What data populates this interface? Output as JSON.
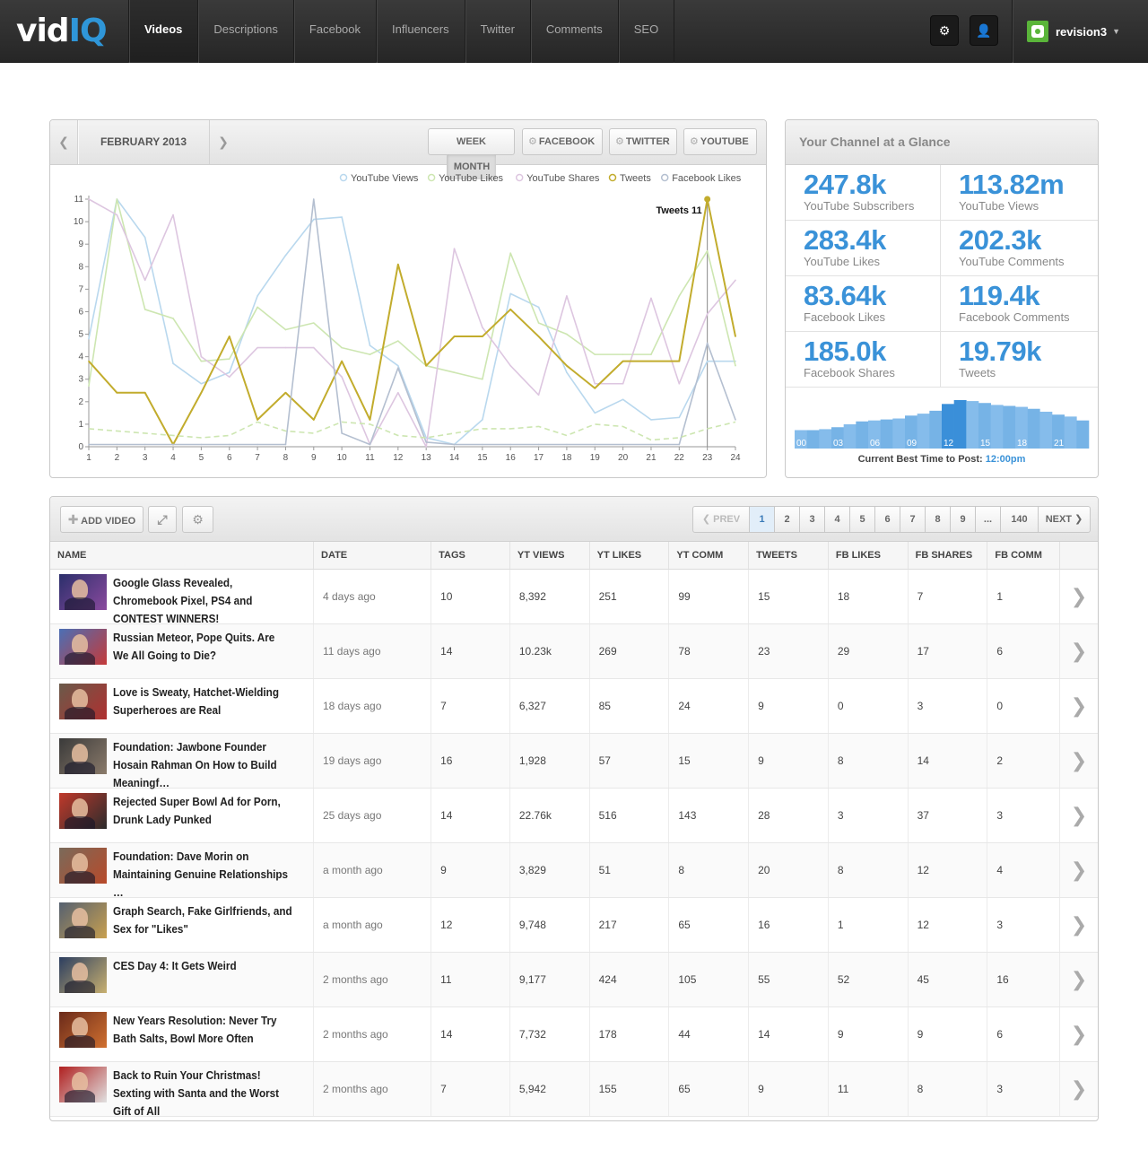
{
  "nav": {
    "logo_left": "vid",
    "logo_right": "IQ",
    "tabs": [
      {
        "label": "Videos",
        "active": true
      },
      {
        "label": "Descriptions",
        "active": false
      },
      {
        "label": "Facebook",
        "active": false
      },
      {
        "label": "Influencers",
        "active": false
      },
      {
        "label": "Twitter",
        "active": false
      },
      {
        "label": "Comments",
        "active": false
      },
      {
        "label": "SEO",
        "active": false
      }
    ],
    "settings_icon": "gear-icon",
    "user_icon": "user-icon",
    "username": "revision3"
  },
  "chart_panel": {
    "prev_icon": "chevron-left-icon",
    "next_icon": "chevron-right-icon",
    "month": "FEBRUARY 2013",
    "week_label": "WEEK",
    "month_label": "MONTH",
    "facebook_label": "FACEBOOK",
    "twitter_label": "TWITTER",
    "youtube_label": "YOUTUBE"
  },
  "chart_data": {
    "type": "line",
    "x": [
      1,
      2,
      3,
      4,
      5,
      6,
      7,
      8,
      9,
      10,
      11,
      12,
      13,
      14,
      15,
      16,
      17,
      18,
      19,
      20,
      21,
      22,
      23,
      24
    ],
    "ylim": [
      0,
      11
    ],
    "yticks": [
      0,
      1,
      2,
      3,
      4,
      5,
      6,
      7,
      8,
      9,
      10,
      11
    ],
    "legend_position": "top-right",
    "tooltip": "Tweets 11",
    "series": [
      {
        "name": "YouTube Views",
        "color": "#b9d8ee",
        "values": [
          4.8,
          11.0,
          9.3,
          3.7,
          2.8,
          3.3,
          6.7,
          8.5,
          10.1,
          10.2,
          4.5,
          3.6,
          0.4,
          0.1,
          1.2,
          6.8,
          6.2,
          3.3,
          1.5,
          2.1,
          1.2,
          1.3,
          3.8,
          3.8
        ]
      },
      {
        "name": "YouTube Likes",
        "color": "#cde6b1",
        "values": [
          2.7,
          11.0,
          6.1,
          5.7,
          3.8,
          3.9,
          6.2,
          5.2,
          5.5,
          4.4,
          4.1,
          4.7,
          3.6,
          3.3,
          3.0,
          8.6,
          5.5,
          5.0,
          4.1,
          4.1,
          4.1,
          6.7,
          8.7,
          3.6
        ]
      },
      {
        "name": "YouTube Shares",
        "color": "#ddc6e0",
        "values": [
          11.0,
          10.3,
          7.4,
          10.3,
          4.0,
          3.1,
          4.4,
          4.4,
          4.4,
          3.1,
          0.1,
          2.4,
          0.0,
          8.8,
          5.3,
          3.6,
          2.3,
          6.7,
          2.8,
          2.8,
          6.6,
          2.8,
          5.9,
          7.4
        ]
      },
      {
        "name": "Tweets",
        "color": "#c2ac2d",
        "values": [
          3.8,
          2.4,
          2.4,
          0.1,
          2.4,
          4.9,
          1.2,
          2.4,
          1.2,
          3.8,
          1.2,
          8.1,
          3.6,
          4.9,
          4.9,
          6.1,
          4.9,
          3.6,
          2.6,
          3.8,
          3.8,
          3.8,
          11.0,
          4.9
        ]
      },
      {
        "name": "Facebook Likes",
        "color": "#b4bfd0",
        "values": [
          0.1,
          0.1,
          0.1,
          0.1,
          0.1,
          0.1,
          0.1,
          0.1,
          11.0,
          0.6,
          0.1,
          3.5,
          0.2,
          0.1,
          0.1,
          0.1,
          0.1,
          0.1,
          0.1,
          0.1,
          0.1,
          0.1,
          4.6,
          1.2
        ]
      },
      {
        "name": "",
        "color": "#cde6b1",
        "dashed": true,
        "values": [
          0.8,
          0.7,
          0.6,
          0.5,
          0.4,
          0.5,
          1.1,
          0.7,
          0.6,
          1.1,
          1.0,
          0.5,
          0.4,
          0.6,
          0.8,
          0.8,
          0.9,
          0.5,
          1.0,
          0.9,
          0.3,
          0.4,
          0.8,
          1.1
        ]
      }
    ]
  },
  "glance": {
    "title": "Your Channel at a Glance",
    "stats": [
      {
        "value": "247.8k",
        "label": "YouTube Subscribers"
      },
      {
        "value": "113.82m",
        "label": "YouTube Views"
      },
      {
        "value": "283.4k",
        "label": "YouTube Likes"
      },
      {
        "value": "202.3k",
        "label": "YouTube Comments"
      },
      {
        "value": "83.64k",
        "label": "Facebook Likes"
      },
      {
        "value": "119.4k",
        "label": "Facebook Comments"
      },
      {
        "value": "185.0k",
        "label": "Facebook Shares"
      },
      {
        "value": "19.79k",
        "label": "Tweets"
      }
    ],
    "best_time": {
      "hour_labels": [
        "00",
        "03",
        "06",
        "09",
        "12",
        "15",
        "18",
        "21"
      ],
      "values": [
        0.38,
        0.38,
        0.4,
        0.44,
        0.5,
        0.56,
        0.58,
        0.6,
        0.62,
        0.68,
        0.72,
        0.78,
        0.92,
        1.0,
        0.98,
        0.94,
        0.9,
        0.88,
        0.86,
        0.82,
        0.76,
        0.7,
        0.66,
        0.58
      ],
      "best_hour": 12,
      "label": "Current Best Time to Post:",
      "value": "12:00pm"
    }
  },
  "table_panel": {
    "add_video_label": "ADD VIDEO",
    "add_icon": "plus-icon",
    "expand_icon": "expand-icon",
    "settings_icon": "gears-icon",
    "pager": {
      "prev": "PREV",
      "next": "NEXT",
      "pages": [
        "1",
        "2",
        "3",
        "4",
        "5",
        "6",
        "7",
        "8",
        "9",
        "...",
        "140"
      ],
      "current": "1"
    },
    "columns": [
      "NAME",
      "DATE",
      "TAGS",
      "YT VIEWS",
      "YT LIKES",
      "YT COMM",
      "TWEETS",
      "FB LIKES",
      "FB SHARES",
      "FB COMM"
    ],
    "rows": [
      {
        "title": "Google Glass Revealed, Chromebook Pixel, PS4 and CONTEST WINNERS!",
        "date": "4 days ago",
        "tags": "10",
        "yt_views": "8,392",
        "yt_likes": "251",
        "yt_comm": "99",
        "tweets": "15",
        "fb_likes": "18",
        "fb_shares": "7",
        "fb_comm": "1",
        "thumb": [
          "#2b2f6b",
          "#8a4a9e"
        ]
      },
      {
        "title": "Russian Meteor, Pope Quits. Are We All Going to Die?",
        "date": "11 days ago",
        "tags": "14",
        "yt_views": "10.23k",
        "yt_likes": "269",
        "yt_comm": "78",
        "tweets": "23",
        "fb_likes": "29",
        "fb_shares": "17",
        "fb_comm": "6",
        "thumb": [
          "#4b6fb5",
          "#c43a3a"
        ]
      },
      {
        "title": "Love is Sweaty, Hatchet-Wielding Superheroes are Real",
        "date": "18 days ago",
        "tags": "7",
        "yt_views": "6,327",
        "yt_likes": "85",
        "yt_comm": "24",
        "tweets": "9",
        "fb_likes": "0",
        "fb_shares": "3",
        "fb_comm": "0",
        "thumb": [
          "#6a5a4a",
          "#b03030"
        ]
      },
      {
        "title": "Foundation: Jawbone Founder Hosain Rahman On How to Build Meaningf…",
        "date": "19 days ago",
        "tags": "16",
        "yt_views": "1,928",
        "yt_likes": "57",
        "yt_comm": "15",
        "tweets": "9",
        "fb_likes": "8",
        "fb_shares": "14",
        "fb_comm": "2",
        "thumb": [
          "#3a3a3a",
          "#8a7a6a"
        ]
      },
      {
        "title": "Rejected Super Bowl Ad for Porn, Drunk Lady Punked",
        "date": "25 days ago",
        "tags": "14",
        "yt_views": "22.76k",
        "yt_likes": "516",
        "yt_comm": "143",
        "tweets": "28",
        "fb_likes": "3",
        "fb_shares": "37",
        "fb_comm": "3",
        "thumb": [
          "#c0392b",
          "#2c2c2c"
        ]
      },
      {
        "title": "Foundation: Dave Morin on Maintaining Genuine Relationships …",
        "date": "a month ago",
        "tags": "9",
        "yt_views": "3,829",
        "yt_likes": "51",
        "yt_comm": "8",
        "tweets": "20",
        "fb_likes": "8",
        "fb_shares": "12",
        "fb_comm": "4",
        "thumb": [
          "#7a6a5a",
          "#b84a2a"
        ]
      },
      {
        "title": "Graph Search, Fake Girlfriends, and Sex for \"Likes\"",
        "date": "a month ago",
        "tags": "12",
        "yt_views": "9,748",
        "yt_likes": "217",
        "yt_comm": "65",
        "tweets": "16",
        "fb_likes": "1",
        "fb_shares": "12",
        "fb_comm": "3",
        "thumb": [
          "#556070",
          "#c8a050"
        ]
      },
      {
        "title": "CES Day 4: It Gets Weird",
        "date": "2 months ago",
        "tags": "11",
        "yt_views": "9,177",
        "yt_likes": "424",
        "yt_comm": "105",
        "tweets": "55",
        "fb_likes": "52",
        "fb_shares": "45",
        "fb_comm": "16",
        "thumb": [
          "#2c3e60",
          "#c8b070"
        ]
      },
      {
        "title": "New Years Resolution: Never Try Bath Salts, Bowl More Often",
        "date": "2 months ago",
        "tags": "14",
        "yt_views": "7,732",
        "yt_likes": "178",
        "yt_comm": "44",
        "tweets": "14",
        "fb_likes": "9",
        "fb_shares": "9",
        "fb_comm": "6",
        "thumb": [
          "#6a2a1a",
          "#d07030"
        ]
      },
      {
        "title": "Back to Ruin Your Christmas! Sexting with Santa and the Worst Gift of All",
        "date": "2 months ago",
        "tags": "7",
        "yt_views": "5,942",
        "yt_likes": "155",
        "yt_comm": "65",
        "tweets": "9",
        "fb_likes": "11",
        "fb_shares": "8",
        "fb_comm": "3",
        "thumb": [
          "#b02020",
          "#e0e0e0"
        ]
      }
    ],
    "row_icon": "chevron-right-icon"
  },
  "colors": {
    "accent": "#3a92d8",
    "nav_bg": "#2e2e2e"
  }
}
